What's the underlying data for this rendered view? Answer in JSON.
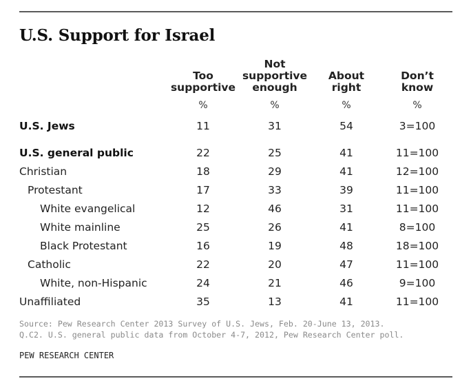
{
  "title": "U.S. Support for Israel",
  "columns": [
    {
      "label": "Too\nsupportive",
      "unit": "%"
    },
    {
      "label": "Not\nsupportive\nenough",
      "unit": "%"
    },
    {
      "label": "About\nright",
      "unit": "%"
    },
    {
      "label": "Don’t\nknow",
      "unit": "%"
    }
  ],
  "rows": [
    {
      "label": "U.S. Jews",
      "bold": true,
      "indent": 0,
      "values": [
        "11",
        "31",
        "54",
        "3=100"
      ]
    },
    {
      "label": "U.S. general public",
      "bold": true,
      "indent": 0,
      "values": [
        "22",
        "25",
        "41",
        "11=100"
      ]
    },
    {
      "label": "Christian",
      "bold": false,
      "indent": 0,
      "values": [
        "18",
        "29",
        "41",
        "12=100"
      ]
    },
    {
      "label": "Protestant",
      "bold": false,
      "indent": 1,
      "values": [
        "17",
        "33",
        "39",
        "11=100"
      ]
    },
    {
      "label": "White evangelical",
      "bold": false,
      "indent": 2,
      "values": [
        "12",
        "46",
        "31",
        "11=100"
      ]
    },
    {
      "label": "White mainline",
      "bold": false,
      "indent": 2,
      "values": [
        "25",
        "26",
        "41",
        "8=100"
      ]
    },
    {
      "label": "Black Protestant",
      "bold": false,
      "indent": 2,
      "values": [
        "16",
        "19",
        "48",
        "18=100"
      ]
    },
    {
      "label": "Catholic",
      "bold": false,
      "indent": 1,
      "values": [
        "22",
        "20",
        "47",
        "11=100"
      ]
    },
    {
      "label": "White, non-Hispanic",
      "bold": false,
      "indent": 2,
      "values": [
        "24",
        "21",
        "46",
        "9=100"
      ]
    },
    {
      "label": "Unaffiliated",
      "bold": false,
      "indent": 0,
      "values": [
        "35",
        "13",
        "41",
        "11=100"
      ]
    }
  ],
  "source": "Source: Pew Research Center 2013 Survey of U.S. Jews, Feb. 20-June 13, 2013.\nQ.C2. U.S. general public data from October 4-7, 2012, Pew Research Center poll.",
  "credit": "PEW RESEARCH CENTER"
}
